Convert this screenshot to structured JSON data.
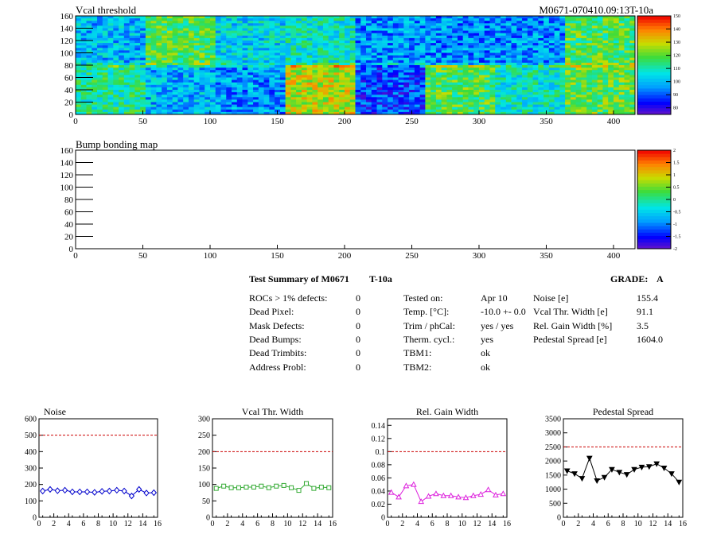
{
  "header": {
    "map1_title": "Vcal threshold",
    "module_id": "M0671-070410.09:13T-10a",
    "map2_title": "Bump bonding map"
  },
  "summary": {
    "title": "Test Summary of M0671",
    "temp_label": "T-10a",
    "grade_label": "GRADE:",
    "grade_value": "A",
    "col1": [
      {
        "label": "ROCs > 1% defects:",
        "value": "0"
      },
      {
        "label": "Dead Pixel:",
        "value": "0"
      },
      {
        "label": "Mask Defects:",
        "value": "0"
      },
      {
        "label": "Dead Bumps:",
        "value": "0"
      },
      {
        "label": "Dead Trimbits:",
        "value": "0"
      },
      {
        "label": "Address Probl:",
        "value": "0"
      }
    ],
    "col2": [
      {
        "label": "Tested on:",
        "value": "Apr 10"
      },
      {
        "label": "Temp. [°C]:",
        "value": "-10.0 +- 0.0"
      },
      {
        "label": "Trim / phCal:",
        "value": "yes / yes"
      },
      {
        "label": "Therm. cycl.:",
        "value": "yes"
      },
      {
        "label": "TBM1:",
        "value": "ok"
      },
      {
        "label": "TBM2:",
        "value": "ok"
      }
    ],
    "col3": [
      {
        "label": "Noise [e]",
        "value": "155.4"
      },
      {
        "label": "Vcal Thr. Width [e]",
        "value": "91.1"
      },
      {
        "label": "Rel. Gain Width [%]",
        "value": "3.5"
      },
      {
        "label": "Pedestal Spread [e]",
        "value": "1604.0"
      }
    ]
  },
  "chart_data": [
    {
      "type": "heatmap",
      "title": "Vcal threshold",
      "xlim": [
        0,
        416
      ],
      "ylim": [
        0,
        160
      ],
      "xticks": [
        "0",
        "50",
        "100",
        "150",
        "200",
        "250",
        "300",
        "350",
        "400"
      ],
      "yticks": [
        "0",
        "20",
        "40",
        "60",
        "80",
        "100",
        "120",
        "140",
        "160"
      ],
      "colorbar": {
        "min": 75,
        "max": 150,
        "ticks": [
          "80",
          "90",
          "100",
          "110",
          "120",
          "130",
          "140",
          "150"
        ]
      },
      "roc_means_top": [
        100,
        118,
        104,
        108,
        96,
        95,
        95,
        118
      ],
      "roc_means_bottom": [
        112,
        100,
        96,
        128,
        88,
        118,
        108,
        120
      ]
    },
    {
      "type": "heatmap",
      "title": "Bump bonding map",
      "xlim": [
        0,
        416
      ],
      "ylim": [
        0,
        160
      ],
      "xticks": [
        "0",
        "50",
        "100",
        "150",
        "200",
        "250",
        "300",
        "350",
        "400"
      ],
      "yticks": [
        "0",
        "20",
        "40",
        "60",
        "80",
        "100",
        "120",
        "140",
        "160"
      ],
      "colorbar": {
        "min": -2,
        "max": 2,
        "ticks": [
          "-2",
          "-1.5",
          "-1",
          "-0.5",
          "0",
          "0.5",
          "1",
          "1.5",
          "2"
        ]
      }
    },
    {
      "type": "line",
      "title": "Noise",
      "xlim": [
        0,
        16
      ],
      "ylim": [
        0,
        600
      ],
      "xticks": [
        "0",
        "2",
        "4",
        "6",
        "8",
        "10",
        "12",
        "14",
        "16"
      ],
      "yticks": [
        "0",
        "100",
        "200",
        "300",
        "400",
        "500",
        "600"
      ],
      "cut": 500,
      "marker": "diamond",
      "color": "#0000cc",
      "x": [
        0.5,
        1.5,
        2.5,
        3.5,
        4.5,
        5.5,
        6.5,
        7.5,
        8.5,
        9.5,
        10.5,
        11.5,
        12.5,
        13.5,
        14.5,
        15.5
      ],
      "y": [
        160,
        170,
        162,
        165,
        155,
        155,
        155,
        152,
        158,
        160,
        165,
        160,
        130,
        170,
        148,
        150
      ]
    },
    {
      "type": "line",
      "title": "Vcal Thr. Width",
      "xlim": [
        0,
        16
      ],
      "ylim": [
        0,
        300
      ],
      "xticks": [
        "0",
        "2",
        "4",
        "6",
        "8",
        "10",
        "12",
        "14",
        "16"
      ],
      "yticks": [
        "0",
        "50",
        "100",
        "150",
        "200",
        "250",
        "300"
      ],
      "cut": 200,
      "marker": "square",
      "color": "#33aa33",
      "x": [
        0.5,
        1.5,
        2.5,
        3.5,
        4.5,
        5.5,
        6.5,
        7.5,
        8.5,
        9.5,
        10.5,
        11.5,
        12.5,
        13.5,
        14.5,
        15.5
      ],
      "y": [
        88,
        95,
        90,
        90,
        92,
        92,
        95,
        90,
        95,
        97,
        90,
        82,
        103,
        88,
        92,
        90
      ]
    },
    {
      "type": "line",
      "title": "Rel. Gain Width",
      "xlim": [
        0,
        16
      ],
      "ylim": [
        0,
        0.15
      ],
      "xticks": [
        "0",
        "2",
        "4",
        "6",
        "8",
        "10",
        "12",
        "14",
        "16"
      ],
      "yticks": [
        "0",
        "0.02",
        "0.04",
        "0.06",
        "0.08",
        "0.1",
        "0.12",
        "0.14"
      ],
      "cut": 0.1,
      "marker": "triangle-up",
      "color": "#dd22dd",
      "x": [
        0.5,
        1.5,
        2.5,
        3.5,
        4.5,
        5.5,
        6.5,
        7.5,
        8.5,
        9.5,
        10.5,
        11.5,
        12.5,
        13.5,
        14.5,
        15.5
      ],
      "y": [
        0.038,
        0.031,
        0.048,
        0.05,
        0.024,
        0.032,
        0.036,
        0.033,
        0.033,
        0.031,
        0.03,
        0.033,
        0.035,
        0.042,
        0.034,
        0.036
      ]
    },
    {
      "type": "line",
      "title": "Pedestal Spread",
      "xlim": [
        0,
        16
      ],
      "ylim": [
        0,
        3500
      ],
      "xticks": [
        "0",
        "2",
        "4",
        "6",
        "8",
        "10",
        "12",
        "14",
        "16"
      ],
      "yticks": [
        "0",
        "500",
        "1000",
        "1500",
        "2000",
        "2500",
        "3000",
        "3500"
      ],
      "cut": 2500,
      "marker": "triangle-down",
      "color": "#000000",
      "x": [
        0.5,
        1.5,
        2.5,
        3.5,
        4.5,
        5.5,
        6.5,
        7.5,
        8.5,
        9.5,
        10.5,
        11.5,
        12.5,
        13.5,
        14.5,
        15.5
      ],
      "y": [
        1650,
        1550,
        1380,
        2100,
        1300,
        1420,
        1700,
        1600,
        1520,
        1700,
        1780,
        1800,
        1900,
        1750,
        1550,
        1250
      ]
    }
  ]
}
